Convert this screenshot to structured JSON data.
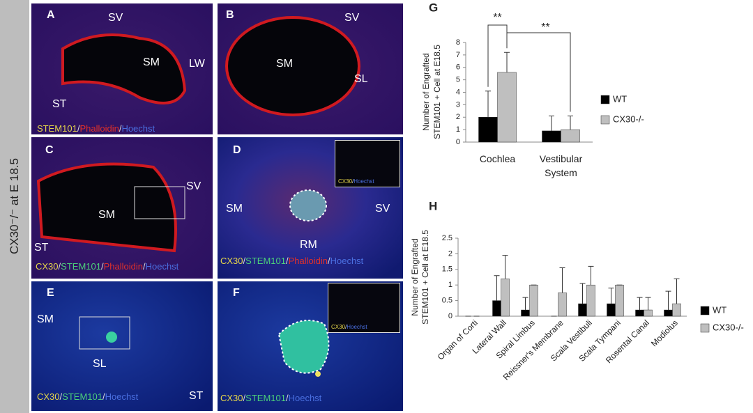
{
  "side_label": "CX30⁻/⁻ at E 18.5",
  "panels": [
    {
      "label": "A",
      "texts": [
        "SV",
        "SM",
        "LW",
        "ST"
      ],
      "caption": [
        {
          "text": "STEM101",
          "color": "#e6d64a"
        },
        {
          "text": "/",
          "color": "#dddddd"
        },
        {
          "text": "Phalloidin",
          "color": "#e0302a"
        },
        {
          "text": "/",
          "color": "#dddddd"
        },
        {
          "text": "Hoechst",
          "color": "#4a6fe0"
        }
      ]
    },
    {
      "label": "B",
      "texts": [
        "SV",
        "SM",
        "SL"
      ]
    },
    {
      "label": "C",
      "texts": [
        "SV",
        "SM",
        "ST"
      ],
      "caption": [
        {
          "text": "CX30",
          "color": "#e6d64a"
        },
        {
          "text": "/",
          "color": "#dddddd"
        },
        {
          "text": "STEM101",
          "color": "#4cd07a"
        },
        {
          "text": "/",
          "color": "#dddddd"
        },
        {
          "text": "Phalloidin",
          "color": "#e0302a"
        },
        {
          "text": "/",
          "color": "#dddddd"
        },
        {
          "text": "Hoechst",
          "color": "#4a6fe0"
        }
      ]
    },
    {
      "label": "D",
      "texts": [
        "SM",
        "SV",
        "RM"
      ],
      "caption": [
        {
          "text": "CX30",
          "color": "#e6d64a"
        },
        {
          "text": "/",
          "color": "#dddddd"
        },
        {
          "text": "STEM101",
          "color": "#4cd07a"
        },
        {
          "text": "/",
          "color": "#dddddd"
        },
        {
          "text": "Phalloidin",
          "color": "#e0302a"
        },
        {
          "text": "/",
          "color": "#dddddd"
        },
        {
          "text": "Hoechst",
          "color": "#4a6fe0"
        }
      ],
      "inset_caption": [
        {
          "text": "CX30",
          "color": "#e6d64a"
        },
        {
          "text": "/",
          "color": "#dddddd"
        },
        {
          "text": "Hoechst",
          "color": "#4a6fe0"
        }
      ]
    },
    {
      "label": "E",
      "texts": [
        "SM",
        "SL",
        "ST"
      ],
      "caption": [
        {
          "text": "CX30",
          "color": "#e6d64a"
        },
        {
          "text": "/",
          "color": "#dddddd"
        },
        {
          "text": "STEM101",
          "color": "#4cd07a"
        },
        {
          "text": "/",
          "color": "#dddddd"
        },
        {
          "text": "Hoechst",
          "color": "#4a6fe0"
        }
      ]
    },
    {
      "label": "F",
      "texts": [],
      "caption": [
        {
          "text": "CX30",
          "color": "#e6d64a"
        },
        {
          "text": "/",
          "color": "#dddddd"
        },
        {
          "text": "STEM101",
          "color": "#4cd07a"
        },
        {
          "text": "/",
          "color": "#dddddd"
        },
        {
          "text": "Hoechst",
          "color": "#4a6fe0"
        }
      ],
      "inset_caption": [
        {
          "text": "CX30",
          "color": "#e6d64a"
        },
        {
          "text": "/",
          "color": "#dddddd"
        },
        {
          "text": "Hoechst",
          "color": "#4a6fe0"
        }
      ]
    }
  ],
  "chart_data": [
    {
      "type": "bar",
      "label": "G",
      "ylabel": [
        "Number of  Engrafted",
        "STEM101 + Cell at E18.5"
      ],
      "categories": [
        "Cochlea",
        "Vestibular System"
      ],
      "series": [
        {
          "name": "WT",
          "color": "#000000",
          "values": [
            2,
            0.9
          ],
          "errors": [
            2.1,
            1.2
          ]
        },
        {
          "name": "CX30-/-",
          "color": "#bfbfbf",
          "values": [
            5.6,
            1.0
          ],
          "errors": [
            1.6,
            1.1
          ]
        }
      ],
      "ylim": [
        0,
        8
      ],
      "yticks": [
        0,
        1,
        2,
        3,
        4,
        5,
        6,
        7,
        8
      ],
      "annotations": [
        "**",
        "**"
      ],
      "legend": "right"
    },
    {
      "type": "bar",
      "label": "H",
      "ylabel": [
        "Number of  Engrafted",
        "STEM101 + Cell at E18.5"
      ],
      "categories": [
        "Organ of Corti",
        "Lateral Wall",
        "Spiral Limbus",
        "Reissner's Membrane",
        "Scala Vestibuli",
        "Scala Tympani",
        "Rosental Canal",
        "Modiolus"
      ],
      "series": [
        {
          "name": "WT",
          "color": "#000000",
          "values": [
            0,
            0.5,
            0.2,
            0,
            0.4,
            0.4,
            0.2,
            0.2
          ],
          "errors": [
            0,
            0.8,
            0.4,
            0,
            0.65,
            0.5,
            0.4,
            0.6
          ]
        },
        {
          "name": "CX30-/-",
          "color": "#bfbfbf",
          "values": [
            0,
            1.2,
            1.0,
            0.75,
            1.0,
            1.0,
            0.2,
            0.4
          ],
          "errors": [
            0,
            0.75,
            0,
            0.8,
            0.6,
            0,
            0.4,
            0.8
          ]
        }
      ],
      "ylim": [
        0,
        2.5
      ],
      "yticks": [
        0,
        0.5,
        1,
        1.5,
        2,
        2.5
      ],
      "legend": "right"
    }
  ]
}
